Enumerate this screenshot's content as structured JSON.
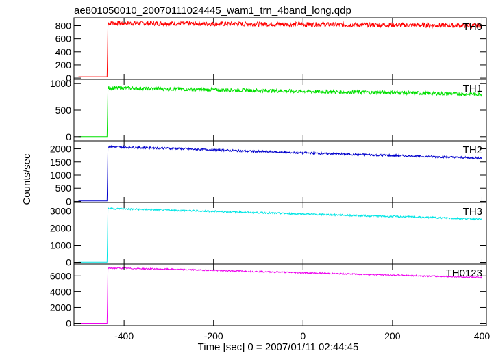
{
  "chart_data": {
    "type": "line",
    "title": "ae801050010_20070111024445_wam1_trn_4band_long.qdp",
    "xlabel": "Time [sec] 0 = 2007/01/11 02:44:45",
    "ylabel": "Counts/sec",
    "xlim": [
      -512,
      410
    ],
    "xticks": [
      -400,
      -200,
      0,
      200,
      400
    ],
    "grid": false,
    "panels": [
      {
        "name": "TH0",
        "color": "#ff0000",
        "ylim": [
          -20,
          920
        ],
        "yticks": [
          0,
          200,
          400,
          600,
          800
        ],
        "pre_level": 20,
        "step_time": -437,
        "x": [
          -437,
          -300,
          -200,
          -100,
          0,
          100,
          200,
          300,
          400
        ],
        "y": [
          840,
          835,
          830,
          825,
          820,
          815,
          810,
          805,
          800
        ],
        "noise": 35
      },
      {
        "name": "TH1",
        "color": "#00e000",
        "ylim": [
          -80,
          1080
        ],
        "yticks": [
          0,
          500,
          1000
        ],
        "pre_level": 0,
        "step_time": -437,
        "x": [
          -437,
          -300,
          -200,
          -100,
          0,
          100,
          200,
          300,
          400
        ],
        "y": [
          920,
          900,
          885,
          870,
          855,
          840,
          830,
          815,
          800
        ],
        "noise": 35
      },
      {
        "name": "TH2",
        "color": "#0000cc",
        "ylim": [
          -40,
          2300
        ],
        "yticks": [
          0,
          500,
          1000,
          1500,
          2000
        ],
        "pre_level": 20,
        "step_time": -437,
        "x": [
          -437,
          -300,
          -200,
          -100,
          0,
          100,
          200,
          300,
          400
        ],
        "y": [
          2080,
          2020,
          1960,
          1900,
          1850,
          1800,
          1750,
          1700,
          1650
        ],
        "noise": 40
      },
      {
        "name": "TH3",
        "color": "#00e5e5",
        "ylim": [
          -100,
          3500
        ],
        "yticks": [
          0,
          1000,
          2000,
          3000
        ],
        "pre_level": 10,
        "step_time": -437,
        "x": [
          -437,
          -300,
          -200,
          -100,
          0,
          100,
          200,
          300,
          400
        ],
        "y": [
          3150,
          3050,
          2980,
          2900,
          2820,
          2750,
          2680,
          2610,
          2520
        ],
        "noise": 50
      },
      {
        "name": "TH0123",
        "color": "#ee00ee",
        "ylim": [
          -300,
          7500
        ],
        "yticks": [
          0,
          2000,
          4000,
          6000
        ],
        "pre_level": 0,
        "step_time": -437,
        "x": [
          -437,
          -300,
          -200,
          -100,
          0,
          100,
          200,
          300,
          400
        ],
        "y": [
          7000,
          6850,
          6700,
          6550,
          6400,
          6250,
          6100,
          5950,
          5800
        ],
        "noise": 80
      }
    ]
  }
}
